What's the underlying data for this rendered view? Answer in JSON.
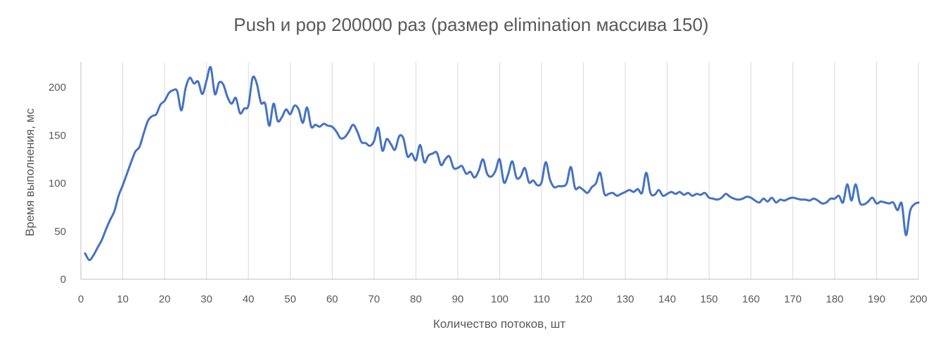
{
  "chart_data": {
    "type": "line",
    "title": "Push и pop 200000 раз (размер elimination массива 150)",
    "xlabel": "Количество потоков, шт",
    "ylabel": "Время выполнения, мс",
    "xlim": [
      0,
      200
    ],
    "ylim": [
      0,
      230
    ],
    "xticks": [
      0,
      10,
      20,
      30,
      40,
      50,
      60,
      70,
      80,
      90,
      100,
      110,
      120,
      130,
      140,
      150,
      160,
      170,
      180,
      190,
      200
    ],
    "yticks": [
      0,
      50,
      100,
      150,
      200
    ],
    "grid": "vertical",
    "legend": "none",
    "color": "#4472c4",
    "series": [
      {
        "x": [
          1,
          2,
          3,
          4,
          5,
          6,
          7,
          8,
          9,
          10,
          11,
          12,
          13,
          14,
          15,
          16,
          17,
          18,
          19,
          20,
          21,
          22,
          23,
          24,
          25,
          26,
          27,
          28,
          29,
          30,
          31,
          32,
          33,
          34,
          35,
          36,
          37,
          38,
          39,
          40,
          41,
          42,
          43,
          44,
          45,
          46,
          47,
          48,
          49,
          50,
          51,
          52,
          53,
          54,
          55,
          56,
          57,
          58,
          59,
          60,
          61,
          62,
          63,
          64,
          65,
          66,
          67,
          68,
          69,
          70,
          71,
          72,
          73,
          74,
          75,
          76,
          77,
          78,
          79,
          80,
          81,
          82,
          83,
          84,
          85,
          86,
          87,
          88,
          89,
          90,
          91,
          92,
          93,
          94,
          95,
          96,
          97,
          98,
          99,
          100,
          101,
          102,
          103,
          104,
          105,
          106,
          107,
          108,
          109,
          110,
          111,
          112,
          113,
          114,
          115,
          116,
          117,
          118,
          119,
          120,
          121,
          122,
          123,
          124,
          125,
          126,
          127,
          128,
          129,
          130,
          131,
          132,
          133,
          134,
          135,
          136,
          137,
          138,
          139,
          140,
          141,
          142,
          143,
          144,
          145,
          146,
          147,
          148,
          149,
          150,
          151,
          152,
          153,
          154,
          155,
          156,
          157,
          158,
          159,
          160,
          161,
          162,
          163,
          164,
          165,
          166,
          167,
          168,
          169,
          170,
          171,
          172,
          173,
          174,
          175,
          176,
          177,
          178,
          179,
          180,
          181,
          182,
          183,
          184,
          185,
          186,
          187,
          188,
          189,
          190,
          191,
          192,
          193,
          194,
          195,
          196,
          197,
          198,
          199,
          200
        ],
        "values": [
          27,
          20,
          25,
          33,
          41,
          52,
          62,
          71,
          87,
          98,
          110,
          122,
          133,
          138,
          152,
          165,
          170,
          172,
          182,
          186,
          194,
          197,
          196,
          176,
          199,
          210,
          204,
          206,
          193,
          207,
          221,
          193,
          205,
          203,
          190,
          183,
          189,
          173,
          178,
          181,
          210,
          204,
          184,
          183,
          160,
          183,
          165,
          169,
          177,
          172,
          181,
          177,
          163,
          179,
          159,
          161,
          159,
          162,
          160,
          159,
          154,
          147,
          148,
          154,
          161,
          154,
          143,
          142,
          139,
          144,
          158,
          134,
          146,
          141,
          135,
          149,
          147,
          128,
          131,
          124,
          140,
          122,
          129,
          131,
          132,
          119,
          125,
          128,
          116,
          116,
          118,
          110,
          112,
          106,
          113,
          125,
          110,
          107,
          113,
          125,
          101,
          109,
          123,
          106,
          107,
          116,
          101,
          103,
          98,
          101,
          122,
          104,
          96,
          97,
          97,
          100,
          117,
          95,
          96,
          93,
          90,
          96,
          100,
          111,
          89,
          89,
          90,
          87,
          89,
          91,
          93,
          91,
          94,
          90,
          111,
          90,
          88,
          93,
          87,
          89,
          91,
          89,
          91,
          88,
          90,
          87,
          89,
          88,
          90,
          85,
          84,
          83,
          85,
          89,
          86,
          84,
          83,
          84,
          86,
          85,
          82,
          80,
          84,
          81,
          85,
          80,
          83,
          82,
          84,
          85,
          84,
          83,
          83,
          82,
          84,
          82,
          79,
          80,
          84,
          84,
          87,
          80,
          99,
          82,
          99,
          80,
          78,
          81,
          85,
          79,
          81,
          80,
          79,
          80,
          72,
          79,
          46,
          71,
          78,
          80
        ]
      }
    ]
  }
}
